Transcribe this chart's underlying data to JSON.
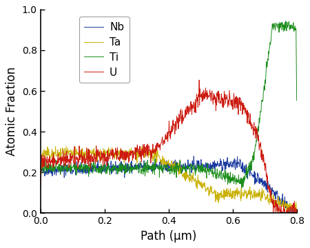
{
  "title": "",
  "xlabel": "Path (μm)",
  "ylabel": "Atomic Fraction",
  "xlim": [
    0.0,
    0.8
  ],
  "ylim": [
    0.0,
    1.0
  ],
  "xticks": [
    0.0,
    0.2,
    0.4,
    0.6,
    0.8
  ],
  "yticks": [
    0.0,
    0.2,
    0.4,
    0.6,
    0.8,
    1.0
  ],
  "legend_labels": [
    "Nb",
    "Ta",
    "Ti",
    "U"
  ],
  "line_colors": [
    "#1a3a9e",
    "#c8b000",
    "#1a8c1a",
    "#cc1a10"
  ],
  "noise_seed": 42,
  "n_points": 800,
  "figsize": [
    4.5,
    3.6
  ],
  "dpi": 100
}
